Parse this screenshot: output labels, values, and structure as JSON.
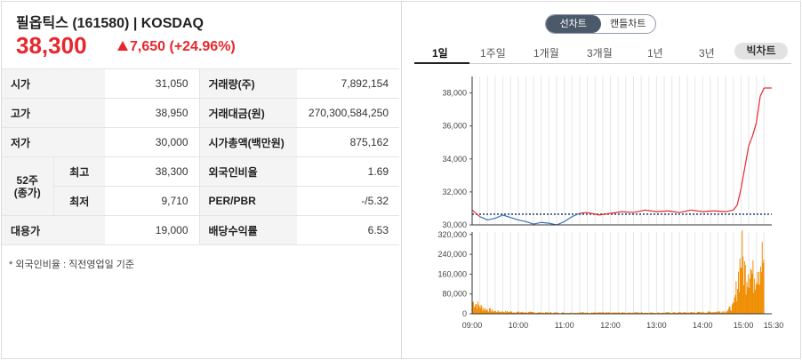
{
  "stock": {
    "name": "필옵틱스 (161580) | KOSDAQ",
    "price": "38,300",
    "change": "7,650 (+24.96%)",
    "up_color": "#e8262d"
  },
  "table": {
    "open_label": "시가",
    "open_value": "31,050",
    "volume_label": "거래량(주)",
    "volume_value": "7,892,154",
    "high_label": "고가",
    "high_value": "38,950",
    "amount_label": "거래대금(원)",
    "amount_value": "270,300,584,250",
    "low_label": "저가",
    "low_value": "30,000",
    "mcap_label": "시가총액(백만원)",
    "mcap_value": "875,162",
    "w52_label_line1": "52주",
    "w52_label_line2": "(종가)",
    "w52_high_label": "최고",
    "w52_high_value": "38,300",
    "foreign_label": "외국인비율",
    "foreign_value": "1.69",
    "w52_low_label": "최저",
    "w52_low_value": "9,710",
    "per_label": "PER/PBR",
    "per_value": "-/5.32",
    "sub_price_label": "대용가",
    "sub_price_value": "19,000",
    "div_label": "배당수익률",
    "div_value": "6.53"
  },
  "footnote": "* 외국인비율 : 직전영업일 기준",
  "chart_toggle": {
    "line": "선차트",
    "candle": "캔들차트"
  },
  "periods": [
    "1일",
    "1주일",
    "1개월",
    "3개월",
    "1년",
    "3년"
  ],
  "big_chart_button": "빅차트",
  "chart_data": {
    "type": "line",
    "price_axis_ticks": [
      "38,000",
      "36,000",
      "34,000",
      "32,000",
      "30,000"
    ],
    "volume_axis_ticks": [
      "320,000",
      "240,000",
      "160,000",
      "80,000",
      "0"
    ],
    "time_ticks": [
      "09:00",
      "10:00",
      "11:00",
      "12:00",
      "13:00",
      "14:00",
      "15:00",
      "15:30"
    ],
    "ylim_price": [
      30000,
      39000
    ],
    "ylim_volume": [
      0,
      330000
    ],
    "previous_close": 30650,
    "line_color_up": "#e8262d",
    "line_color_down": "#3a6fb0",
    "volume_color": "#f08c00",
    "price_series": {
      "times": [
        "09:00",
        "09:10",
        "09:20",
        "09:30",
        "09:40",
        "09:50",
        "10:00",
        "10:10",
        "10:20",
        "10:30",
        "10:40",
        "10:50",
        "11:00",
        "11:10",
        "11:20",
        "11:30",
        "11:45",
        "12:00",
        "12:15",
        "12:30",
        "12:45",
        "13:00",
        "13:15",
        "13:30",
        "13:45",
        "14:00",
        "14:15",
        "14:30",
        "14:40",
        "14:45",
        "14:50",
        "14:55",
        "15:00",
        "15:05",
        "15:10",
        "15:15",
        "15:20",
        "15:30"
      ],
      "values": [
        30900,
        30500,
        30300,
        30400,
        30600,
        30450,
        30300,
        30200,
        30050,
        30150,
        30100,
        30000,
        30200,
        30500,
        30700,
        30750,
        30600,
        30700,
        30800,
        30750,
        30900,
        30800,
        30850,
        30750,
        30900,
        30800,
        30850,
        30800,
        30900,
        31200,
        32200,
        33500,
        34800,
        35400,
        36200,
        37800,
        38300,
        38300
      ]
    },
    "volume_series": {
      "times": [
        "09:00",
        "09:15",
        "09:30",
        "10:00",
        "10:30",
        "11:00",
        "11:30",
        "12:00",
        "12:30",
        "13:00",
        "13:30",
        "14:00",
        "14:30",
        "14:40",
        "14:45",
        "14:50",
        "14:55",
        "15:00",
        "15:05",
        "15:10",
        "15:20",
        "15:30"
      ],
      "values": [
        60000,
        25000,
        12000,
        8000,
        6000,
        5000,
        6000,
        5000,
        6000,
        5000,
        6000,
        7000,
        12000,
        40000,
        160000,
        300000,
        200000,
        260000,
        180000,
        260000,
        270000,
        0
      ]
    }
  }
}
